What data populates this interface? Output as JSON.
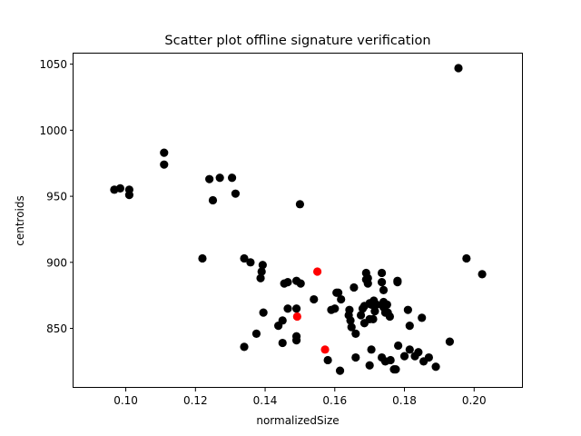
{
  "chart_data": {
    "type": "scatter",
    "title": "Scatter plot offline signature verification",
    "xlabel": "normalizedSize",
    "ylabel": "centroids",
    "xlim": [
      0.085,
      0.214
    ],
    "ylim": [
      805,
      1058
    ],
    "xticks": [
      0.1,
      0.12,
      0.14,
      0.16,
      0.18,
      0.2
    ],
    "xtick_labels": [
      "0.10",
      "0.12",
      "0.14",
      "0.16",
      "0.18",
      "0.20"
    ],
    "yticks": [
      850,
      900,
      950,
      1000,
      1050
    ],
    "ytick_labels": [
      "850",
      "900",
      "950",
      "1000",
      "1050"
    ],
    "grid": false,
    "series": [
      {
        "color": "#000000",
        "points": [
          [
            0.0967,
            955
          ],
          [
            0.0984,
            956
          ],
          [
            0.101,
            955
          ],
          [
            0.101,
            951
          ],
          [
            0.111,
            983
          ],
          [
            0.111,
            974
          ],
          [
            0.124,
            963
          ],
          [
            0.127,
            964
          ],
          [
            0.1305,
            964
          ],
          [
            0.125,
            947
          ],
          [
            0.1315,
            952
          ],
          [
            0.15,
            944
          ],
          [
            0.122,
            903
          ],
          [
            0.1955,
            1047
          ],
          [
            0.1978,
            903
          ],
          [
            0.2023,
            891
          ],
          [
            0.134,
            903
          ],
          [
            0.1358,
            900
          ],
          [
            0.1393,
            898
          ],
          [
            0.139,
            893
          ],
          [
            0.1387,
            888
          ],
          [
            0.1455,
            884
          ],
          [
            0.1465,
            885
          ],
          [
            0.149,
            886
          ],
          [
            0.1502,
            884
          ],
          [
            0.154,
            872
          ],
          [
            0.1395,
            862
          ],
          [
            0.145,
            856
          ],
          [
            0.1438,
            852
          ],
          [
            0.1465,
            865
          ],
          [
            0.149,
            865
          ],
          [
            0.149,
            844
          ],
          [
            0.149,
            841
          ],
          [
            0.145,
            839
          ],
          [
            0.1375,
            846
          ],
          [
            0.134,
            836
          ],
          [
            0.158,
            826
          ],
          [
            0.1615,
            818
          ],
          [
            0.159,
            864
          ],
          [
            0.16,
            865
          ],
          [
            0.1605,
            877
          ],
          [
            0.161,
            877
          ],
          [
            0.1618,
            872
          ],
          [
            0.164,
            860
          ],
          [
            0.1642,
            864
          ],
          [
            0.1645,
            856
          ],
          [
            0.1648,
            851
          ],
          [
            0.166,
            846
          ],
          [
            0.1655,
            881
          ],
          [
            0.166,
            828
          ],
          [
            0.1675,
            860
          ],
          [
            0.168,
            865
          ],
          [
            0.1685,
            867
          ],
          [
            0.1685,
            854
          ],
          [
            0.169,
            887
          ],
          [
            0.169,
            892
          ],
          [
            0.1695,
            884
          ],
          [
            0.1695,
            888
          ],
          [
            0.17,
            869
          ],
          [
            0.17,
            857
          ],
          [
            0.1705,
            868
          ],
          [
            0.171,
            857
          ],
          [
            0.1712,
            871
          ],
          [
            0.1715,
            863
          ],
          [
            0.172,
            868
          ],
          [
            0.17,
            822
          ],
          [
            0.1705,
            834
          ],
          [
            0.1735,
            892
          ],
          [
            0.1735,
            885
          ],
          [
            0.174,
            879
          ],
          [
            0.174,
            870
          ],
          [
            0.174,
            866
          ],
          [
            0.1745,
            862
          ],
          [
            0.175,
            868
          ],
          [
            0.1752,
            862
          ],
          [
            0.1758,
            859
          ],
          [
            0.1735,
            828
          ],
          [
            0.1745,
            825
          ],
          [
            0.176,
            826
          ],
          [
            0.177,
            819
          ],
          [
            0.1775,
            819
          ],
          [
            0.178,
            885
          ],
          [
            0.178,
            886
          ],
          [
            0.1782,
            837
          ],
          [
            0.18,
            829
          ],
          [
            0.181,
            864
          ],
          [
            0.1815,
            852
          ],
          [
            0.1815,
            834
          ],
          [
            0.183,
            829
          ],
          [
            0.184,
            832
          ],
          [
            0.185,
            858
          ],
          [
            0.1855,
            825
          ],
          [
            0.187,
            828
          ],
          [
            0.189,
            821
          ],
          [
            0.193,
            840
          ]
        ]
      },
      {
        "color": "#ff0000",
        "points": [
          [
            0.155,
            893
          ],
          [
            0.1492,
            859
          ],
          [
            0.1572,
            834
          ]
        ]
      }
    ]
  }
}
